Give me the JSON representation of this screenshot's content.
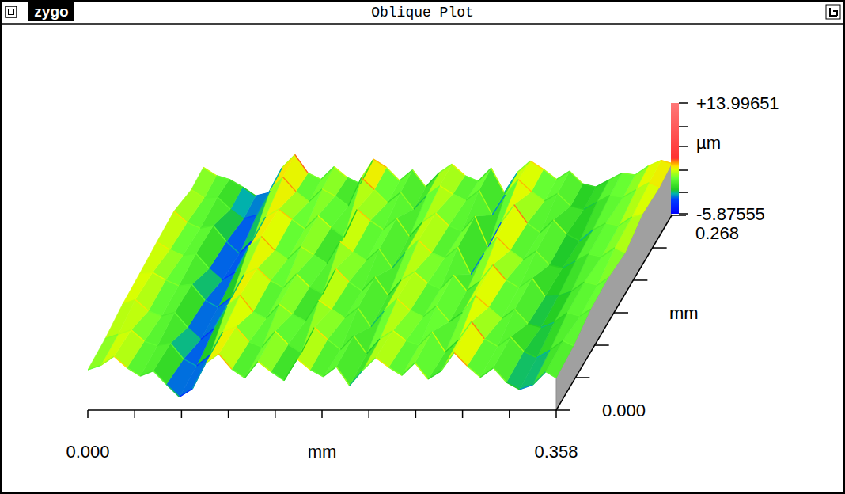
{
  "window": {
    "logo": "zygo",
    "title": "Oblique Plot"
  },
  "chart_data": {
    "type": "surface",
    "xlabel": "mm",
    "ylabel": "mm",
    "x": [
      0,
      0.01,
      0.02,
      0.03,
      0.04,
      0.05,
      0.06,
      0.07,
      0.08,
      0.09,
      0.1,
      0.11,
      0.12,
      0.13,
      0.14,
      0.15,
      0.16,
      0.17,
      0.18,
      0.19,
      0.2,
      0.21,
      0.22,
      0.23,
      0.24,
      0.25,
      0.26,
      0.27,
      0.28,
      0.29,
      0.3,
      0.31,
      0.32,
      0.33,
      0.34,
      0.35,
      0.358
    ],
    "y": [
      0,
      0.04,
      0.08,
      0.12,
      0.16,
      0.2,
      0.24,
      0.268
    ],
    "z": [
      [
        0.5,
        1.2,
        2.6,
        0.8,
        -0.5,
        0.3,
        -1.8,
        -3.8,
        -2.5,
        1.5,
        3.0,
        0.6,
        -0.8,
        1.8,
        0.2,
        -1.2,
        2.2,
        0.5,
        -0.6,
        1.0,
        -2.0,
        0.4,
        2.4,
        0.9,
        -0.4,
        1.6,
        -1.0,
        0.3,
        3.2,
        1.1,
        -0.7,
        0.8,
        -1.5,
        -2.6,
        -1.9,
        0.2,
        -0.8
      ],
      [
        0.8,
        1.5,
        2.2,
        0.4,
        -0.3,
        0.1,
        -2.4,
        -3.5,
        -1.8,
        1.9,
        2.7,
        0.3,
        -0.5,
        2.0,
        -0.1,
        -1.4,
        2.6,
        0.7,
        -0.9,
        1.3,
        -1.6,
        0.8,
        2.1,
        0.5,
        -0.2,
        1.9,
        -1.3,
        0.6,
        3.5,
        0.8,
        -0.4,
        1.1,
        -1.2,
        -2.2,
        -1.0,
        0.5,
        -0.3
      ],
      [
        1.6,
        2.4,
        0.6,
        -0.2,
        0.4,
        -2.0,
        -3.9,
        -2.2,
        1.4,
        3.1,
        0.5,
        -0.6,
        1.7,
        0.1,
        -1.0,
        2.3,
        0.9,
        -0.5,
        1.1,
        -1.9,
        0.6,
        2.5,
        0.7,
        -0.3,
        1.4,
        -1.1,
        0.4,
        3.0,
        1.2,
        -0.6,
        0.9,
        -1.4,
        -2.0,
        -1.2,
        0.3,
        -0.2,
        0.9
      ],
      [
        1.9,
        2.1,
        0.9,
        0.0,
        0.2,
        -2.3,
        -3.4,
        -1.9,
        1.8,
        2.8,
        0.8,
        -0.3,
        1.9,
        -0.2,
        -1.3,
        2.7,
        0.6,
        -0.8,
        1.4,
        -1.5,
        0.9,
        2.2,
        0.4,
        -0.5,
        1.7,
        -0.8,
        0.7,
        3.3,
        0.9,
        -0.3,
        1.2,
        -1.7,
        -1.6,
        -0.9,
        0.6,
        0.1,
        1.2
      ],
      [
        2.3,
        1.1,
        0.2,
        0.5,
        -1.9,
        -3.7,
        -2.4,
        1.5,
        3.2,
        1.0,
        -0.4,
        1.6,
        0.3,
        -1.1,
        2.4,
        0.8,
        -0.6,
        1.2,
        -1.8,
        0.7,
        2.6,
        0.6,
        -0.2,
        1.5,
        -2.8,
        0.5,
        3.1,
        1.0,
        -0.5,
        0.9,
        -1.3,
        -1.8,
        -0.7,
        0.4,
        0.0,
        1.4,
        0.6
      ],
      [
        2.6,
        0.8,
        -0.1,
        0.3,
        -2.2,
        -4.1,
        -2.0,
        1.7,
        2.9,
        1.3,
        -0.2,
        1.9,
        0.0,
        -1.5,
        2.9,
        1.1,
        -0.3,
        1.5,
        -1.4,
        0.9,
        2.3,
        0.3,
        -0.6,
        1.8,
        -3.1,
        0.8,
        3.6,
        0.7,
        -0.8,
        1.2,
        -1.0,
        -2.1,
        -0.4,
        0.7,
        0.3,
        1.7,
        2.1
      ],
      [
        1.4,
        0.1,
        0.2,
        -1.7,
        -3.2,
        -2.6,
        1.2,
        3.4,
        1.1,
        -0.5,
        1.5,
        0.4,
        -1.2,
        3.3,
        1.4,
        -0.7,
        1.0,
        -1.7,
        0.5,
        2.0,
        0.7,
        -0.3,
        1.3,
        -2.6,
        0.6,
        3.0,
        1.1,
        -0.4,
        0.8,
        -1.2,
        -1.7,
        -0.6,
        0.5,
        0.2,
        1.4,
        2.5,
        1.8
      ],
      [
        1.7,
        0.4,
        -0.2,
        -1.4,
        -2.8,
        -2.3,
        1.6,
        3.7,
        0.8,
        -0.2,
        1.8,
        0.1,
        -0.9,
        3.0,
        1.7,
        -0.4,
        1.3,
        -1.4,
        0.8,
        2.2,
        0.4,
        -0.5,
        1.6,
        -2.3,
        0.9,
        2.7,
        1.4,
        -0.2,
        1.1,
        -0.9,
        -1.4,
        -0.3,
        0.8,
        0.5,
        1.9,
        2.8,
        2.3
      ]
    ],
    "xlim": [
      0,
      0.358
    ],
    "ylim": [
      0,
      0.268
    ],
    "xticks": [
      {
        "value": 0,
        "label": "0.000"
      },
      0.358
    ],
    "xminor": [
      0.0358,
      0.0716,
      0.1074,
      0.1432,
      0.179,
      0.2148,
      0.2506,
      0.2864,
      0.3222
    ],
    "yticks": [
      {
        "value": 0,
        "label": "0.000"
      },
      0.268
    ],
    "yminor": [
      0.0447,
      0.0893,
      0.134,
      0.1787,
      0.2233
    ],
    "colorbar": {
      "label": "µm",
      "range": [
        -5.87555,
        13.99651
      ],
      "ticks": [
        {
          "value": 13.99651,
          "label": "+13.99651"
        },
        -5.87555
      ],
      "minor": [
        9.74,
        6.19,
        1.93,
        -2.05
      ]
    }
  }
}
